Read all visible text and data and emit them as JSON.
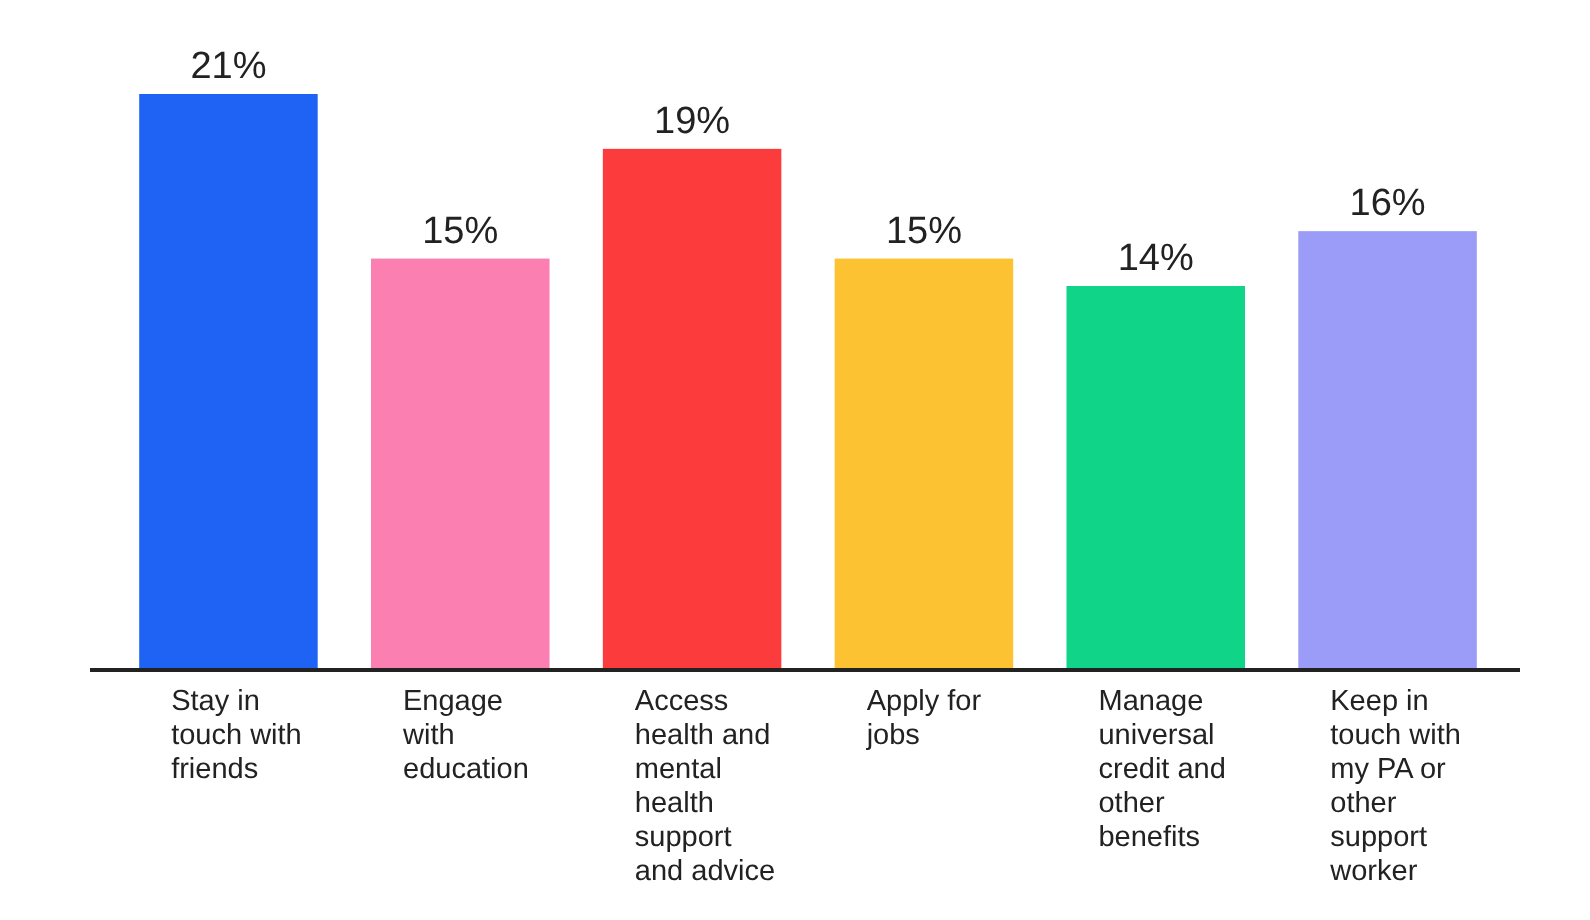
{
  "chart_data": {
    "type": "bar",
    "categories": [
      "Stay in touch with friends",
      "Engage with education",
      "Access health and mental health support and advice",
      "Apply for jobs",
      "Manage universal credit and other benefits",
      "Keep in touch with my PA or other support worker"
    ],
    "values": [
      21,
      15,
      19,
      15,
      14,
      16
    ],
    "colors": [
      "#1f63f5",
      "#fb7fb0",
      "#fc3c3c",
      "#fcc232",
      "#10d487",
      "#9b9cf7"
    ],
    "value_labels": [
      "21%",
      "15%",
      "19%",
      "15%",
      "14%",
      "16%"
    ]
  }
}
